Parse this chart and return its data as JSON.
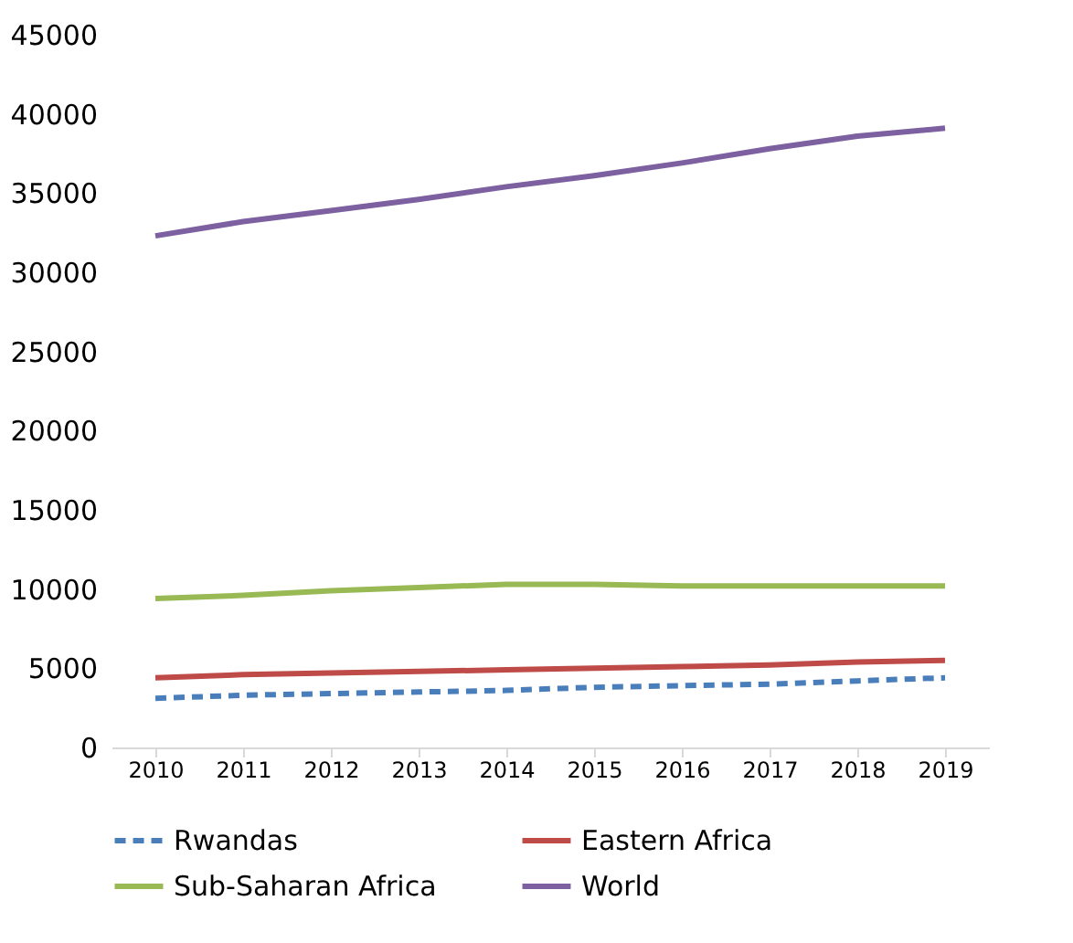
{
  "chart_data": {
    "type": "line",
    "categories": [
      "2010",
      "2011",
      "2012",
      "2013",
      "2014",
      "2015",
      "2016",
      "2017",
      "2018",
      "2019"
    ],
    "ylim": [
      0,
      45000
    ],
    "yticks": [
      0,
      5000,
      10000,
      15000,
      20000,
      25000,
      30000,
      35000,
      40000,
      45000
    ],
    "grid": false,
    "legend": "bottom",
    "marker": "none",
    "series": [
      {
        "name": "Rwandas",
        "color": "#4a7ebb",
        "line_style": "dashed",
        "values": [
          3100,
          3300,
          3400,
          3500,
          3600,
          3800,
          3900,
          4000,
          4200,
          4400
        ]
      },
      {
        "name": "Eastern Africa",
        "color": "#be4b48",
        "line_style": "solid",
        "values": [
          4400,
          4600,
          4700,
          4800,
          4900,
          5000,
          5100,
          5200,
          5400,
          5500
        ]
      },
      {
        "name": "Sub-Saharan Africa",
        "color": "#98b954",
        "line_style": "solid",
        "values": [
          9400,
          9600,
          9900,
          10100,
          10300,
          10300,
          10200,
          10200,
          10200,
          10200
        ]
      },
      {
        "name": "World",
        "color": "#7d60a0",
        "line_style": "solid",
        "values": [
          32300,
          33200,
          33900,
          34600,
          35400,
          36100,
          36900,
          37800,
          38600,
          39100
        ]
      }
    ]
  }
}
